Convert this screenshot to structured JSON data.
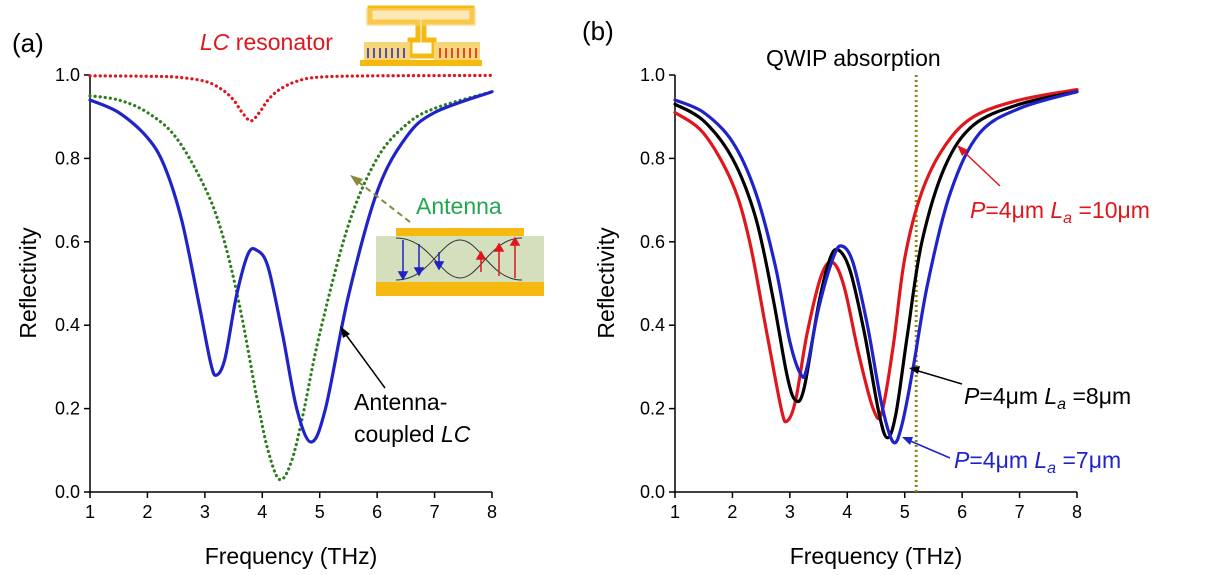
{
  "colors": {
    "blue": "#1f23c8",
    "red": "#e0161d",
    "green": "#2e7d1e",
    "black": "#000000",
    "olive": "#8a8a14",
    "gold": "#f5b90f",
    "antenna_label": "#20a850",
    "cavity_fill": "#d3dfbd"
  },
  "panels": [
    {
      "label": "(a)",
      "title": "",
      "annotations": {
        "lc_resonator_em": "LC",
        "lc_resonator_rest": " resonator",
        "antenna": "Antenna",
        "coupled_line1": "Antenna-",
        "coupled_line2_rest": "coupled ",
        "coupled_line2_em": "LC"
      }
    },
    {
      "label": "(b)",
      "title": "QWIP absorption",
      "annotations": {
        "p_prefix": "P",
        "p_mid": "=4μm ",
        "la_L": "L",
        "la_sub": "a",
        "label_red_value": " =10μm",
        "label_black_value": " =8μm",
        "label_blue_value": " =7μm"
      }
    }
  ],
  "chart_data": [
    {
      "type": "line",
      "panel": "(a)",
      "xlabel": "Frequency (THz)",
      "ylabel": "Reflectivity",
      "xlim": [
        1,
        8
      ],
      "ylim": [
        0,
        1.0
      ],
      "xticks": [
        "1",
        "2",
        "3",
        "4",
        "5",
        "6",
        "7",
        "8"
      ],
      "yticks": [
        "0.0",
        "0.2",
        "0.4",
        "0.6",
        "0.8",
        "1.0"
      ],
      "grid": false,
      "series": [
        {
          "name": "LC resonator",
          "color": "#e0161d",
          "style": "dotted",
          "x": [
            1.0,
            2.0,
            2.5,
            3.0,
            3.3,
            3.5,
            3.65,
            3.8,
            3.95,
            4.1,
            4.3,
            4.6,
            5.0,
            6.0,
            8.0
          ],
          "y": [
            0.998,
            0.997,
            0.995,
            0.985,
            0.965,
            0.94,
            0.91,
            0.89,
            0.91,
            0.94,
            0.965,
            0.985,
            0.995,
            0.998,
            0.999
          ]
        },
        {
          "name": "Antenna",
          "color": "#2e7d1e",
          "style": "dotted",
          "x": [
            1.0,
            1.5,
            2.0,
            2.5,
            3.0,
            3.3,
            3.6,
            3.9,
            4.1,
            4.3,
            4.5,
            4.7,
            5.0,
            5.5,
            6.0,
            6.5,
            7.0,
            8.0
          ],
          "y": [
            0.95,
            0.94,
            0.91,
            0.85,
            0.73,
            0.62,
            0.45,
            0.23,
            0.1,
            0.03,
            0.07,
            0.18,
            0.38,
            0.64,
            0.8,
            0.88,
            0.92,
            0.96
          ]
        },
        {
          "name": "Antenna-coupled LC",
          "color": "#1f23c8",
          "style": "solid",
          "x": [
            1.0,
            1.5,
            2.0,
            2.3,
            2.6,
            2.9,
            3.1,
            3.2,
            3.35,
            3.55,
            3.75,
            3.9,
            4.1,
            4.35,
            4.6,
            4.85,
            5.1,
            5.5,
            6.0,
            6.5,
            7.0,
            8.0
          ],
          "y": [
            0.94,
            0.91,
            0.85,
            0.78,
            0.65,
            0.45,
            0.31,
            0.28,
            0.32,
            0.47,
            0.57,
            0.58,
            0.54,
            0.38,
            0.2,
            0.12,
            0.2,
            0.47,
            0.72,
            0.85,
            0.91,
            0.96
          ]
        }
      ]
    },
    {
      "type": "line",
      "panel": "(b)",
      "title": "QWIP absorption",
      "xlabel": "Frequency (THz)",
      "ylabel": "Reflectivity",
      "xlim": [
        1,
        8
      ],
      "ylim": [
        0,
        1.0
      ],
      "xticks": [
        "1",
        "2",
        "3",
        "4",
        "5",
        "6",
        "7",
        "8"
      ],
      "yticks": [
        "0.0",
        "0.2",
        "0.4",
        "0.6",
        "0.8",
        "1.0"
      ],
      "grid": false,
      "vline": {
        "x": 5.2,
        "color": "#8a8a14",
        "style": "dotted",
        "label": "QWIP absorption"
      },
      "series": [
        {
          "name": "P=4μm La=10μm",
          "color": "#e0161d",
          "style": "solid",
          "x": [
            1.0,
            1.5,
            2.0,
            2.3,
            2.6,
            2.85,
            2.95,
            3.1,
            3.3,
            3.55,
            3.75,
            3.95,
            4.2,
            4.45,
            4.6,
            4.8,
            5.0,
            5.3,
            5.7,
            6.2,
            7.0,
            8.0
          ],
          "y": [
            0.91,
            0.86,
            0.74,
            0.6,
            0.38,
            0.2,
            0.17,
            0.22,
            0.38,
            0.52,
            0.55,
            0.49,
            0.33,
            0.2,
            0.19,
            0.35,
            0.56,
            0.72,
            0.83,
            0.9,
            0.94,
            0.965
          ]
        },
        {
          "name": "P=4μm La=8μm",
          "color": "#000000",
          "style": "solid",
          "x": [
            1.0,
            1.5,
            2.0,
            2.4,
            2.7,
            2.95,
            3.1,
            3.25,
            3.5,
            3.7,
            3.85,
            4.05,
            4.3,
            4.55,
            4.7,
            4.85,
            5.05,
            5.3,
            5.7,
            6.2,
            7.0,
            8.0
          ],
          "y": [
            0.93,
            0.89,
            0.8,
            0.66,
            0.47,
            0.28,
            0.22,
            0.25,
            0.45,
            0.56,
            0.58,
            0.53,
            0.38,
            0.19,
            0.13,
            0.19,
            0.38,
            0.6,
            0.78,
            0.88,
            0.93,
            0.96
          ]
        },
        {
          "name": "P=4μm La=7μm",
          "color": "#1f23c8",
          "style": "solid",
          "x": [
            1.0,
            1.5,
            2.0,
            2.4,
            2.75,
            3.0,
            3.2,
            3.3,
            3.5,
            3.75,
            3.9,
            4.1,
            4.35,
            4.6,
            4.8,
            4.95,
            5.15,
            5.4,
            5.8,
            6.3,
            7.0,
            8.0
          ],
          "y": [
            0.94,
            0.91,
            0.84,
            0.72,
            0.54,
            0.36,
            0.28,
            0.3,
            0.44,
            0.56,
            0.59,
            0.55,
            0.4,
            0.21,
            0.12,
            0.16,
            0.3,
            0.5,
            0.72,
            0.86,
            0.92,
            0.96
          ]
        }
      ]
    }
  ]
}
